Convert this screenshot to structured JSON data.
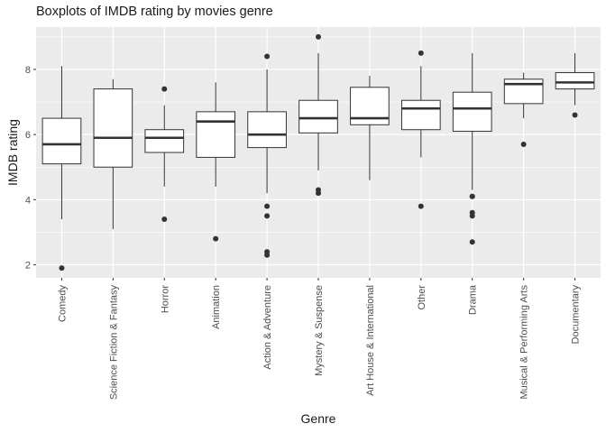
{
  "chart_data": {
    "type": "boxplot",
    "title": "Boxplots of IMDB rating by movies genre",
    "xlabel": "Genre",
    "ylabel": "IMDB rating",
    "ylim": [
      1.6,
      9.3
    ],
    "yticks": [
      2,
      4,
      6,
      8
    ],
    "grid": true,
    "categories": [
      "Comedy",
      "Science Fiction & Fantasy",
      "Horror",
      "Animation",
      "Action & Adventure",
      "Mystery & Suspense",
      "Art House & International",
      "Other",
      "Drama",
      "Musical & Performing Arts",
      "Documentary"
    ],
    "boxes": [
      {
        "genre": "Comedy",
        "lower_whisker": 3.4,
        "q1": 5.1,
        "median": 5.7,
        "q3": 6.5,
        "upper_whisker": 8.1,
        "outliers": [
          1.9
        ]
      },
      {
        "genre": "Science Fiction & Fantasy",
        "lower_whisker": 3.1,
        "q1": 5.0,
        "median": 5.9,
        "q3": 7.4,
        "upper_whisker": 7.7,
        "outliers": []
      },
      {
        "genre": "Horror",
        "lower_whisker": 4.4,
        "q1": 5.45,
        "median": 5.9,
        "q3": 6.15,
        "upper_whisker": 6.9,
        "outliers": [
          7.4,
          3.4
        ]
      },
      {
        "genre": "Animation",
        "lower_whisker": 4.4,
        "q1": 5.3,
        "median": 6.4,
        "q3": 6.7,
        "upper_whisker": 7.6,
        "outliers": [
          2.8
        ]
      },
      {
        "genre": "Action & Adventure",
        "lower_whisker": 4.2,
        "q1": 5.6,
        "median": 6.0,
        "q3": 6.7,
        "upper_whisker": 8.0,
        "outliers": [
          8.4,
          3.8,
          3.5,
          2.4,
          2.3
        ]
      },
      {
        "genre": "Mystery & Suspense",
        "lower_whisker": 4.9,
        "q1": 6.05,
        "median": 6.5,
        "q3": 7.05,
        "upper_whisker": 8.5,
        "outliers": [
          9.0,
          4.3,
          4.2
        ]
      },
      {
        "genre": "Art House & International",
        "lower_whisker": 4.6,
        "q1": 6.3,
        "median": 6.5,
        "q3": 7.45,
        "upper_whisker": 7.8,
        "outliers": []
      },
      {
        "genre": "Other",
        "lower_whisker": 5.3,
        "q1": 6.15,
        "median": 6.8,
        "q3": 7.05,
        "upper_whisker": 8.1,
        "outliers": [
          8.5,
          3.8
        ]
      },
      {
        "genre": "Drama",
        "lower_whisker": 4.3,
        "q1": 6.1,
        "median": 6.8,
        "q3": 7.3,
        "upper_whisker": 8.5,
        "outliers": [
          4.1,
          4.1,
          3.6,
          3.5,
          2.7
        ]
      },
      {
        "genre": "Musical & Performing Arts",
        "lower_whisker": 6.5,
        "q1": 6.95,
        "median": 7.55,
        "q3": 7.7,
        "upper_whisker": 7.9,
        "outliers": [
          5.7
        ]
      },
      {
        "genre": "Documentary",
        "lower_whisker": 6.9,
        "q1": 7.4,
        "median": 7.6,
        "q3": 7.9,
        "upper_whisker": 8.5,
        "outliers": [
          6.6
        ]
      }
    ],
    "colors": {
      "panel": "#ebebeb",
      "grid": "#ffffff",
      "box_fill": "#ffffff",
      "stroke": "#333333",
      "outlier": "#333333"
    }
  }
}
